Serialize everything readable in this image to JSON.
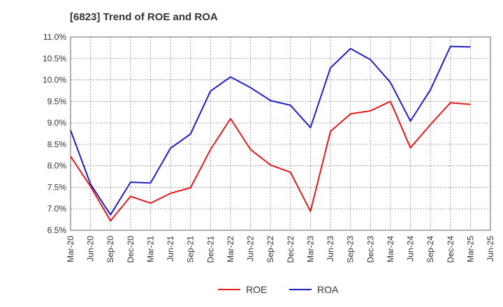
{
  "chart_data": {
    "type": "line",
    "title": "[6823]  Trend of ROE and ROA",
    "xlabel": "",
    "ylabel": "",
    "x": [
      "Mar-20",
      "Jun-20",
      "Sep-20",
      "Dec-20",
      "Mar-21",
      "Jun-21",
      "Sep-21",
      "Dec-21",
      "Mar-22",
      "Jun-22",
      "Sep-22",
      "Dec-22",
      "Mar-23",
      "Jun-23",
      "Sep-23",
      "Dec-23",
      "Mar-24",
      "Jun-24",
      "Sep-24",
      "Dec-24",
      "Mar-25",
      "Jun-25"
    ],
    "ylim": [
      6.5,
      11.0
    ],
    "yticks": [
      "6.5%",
      "7.0%",
      "7.5%",
      "8.0%",
      "8.5%",
      "9.0%",
      "9.5%",
      "10.0%",
      "10.5%",
      "11.0%"
    ],
    "grid": true,
    "legend_position": "bottom",
    "series": [
      {
        "name": "ROE",
        "color": "#e31a1c",
        "values": [
          8.22,
          7.52,
          6.72,
          7.29,
          7.13,
          7.36,
          7.49,
          8.38,
          9.1,
          8.38,
          8.02,
          7.85,
          6.94,
          8.8,
          9.21,
          9.28,
          9.5,
          8.42,
          8.96,
          9.47,
          9.43,
          null
        ]
      },
      {
        "name": "ROA",
        "color": "#1f1fcc",
        "values": [
          8.83,
          7.57,
          6.86,
          7.62,
          7.6,
          8.41,
          8.74,
          9.74,
          10.07,
          9.82,
          9.52,
          9.41,
          8.89,
          10.28,
          10.73,
          10.47,
          9.94,
          9.04,
          9.77,
          10.78,
          10.77,
          null
        ]
      }
    ]
  }
}
